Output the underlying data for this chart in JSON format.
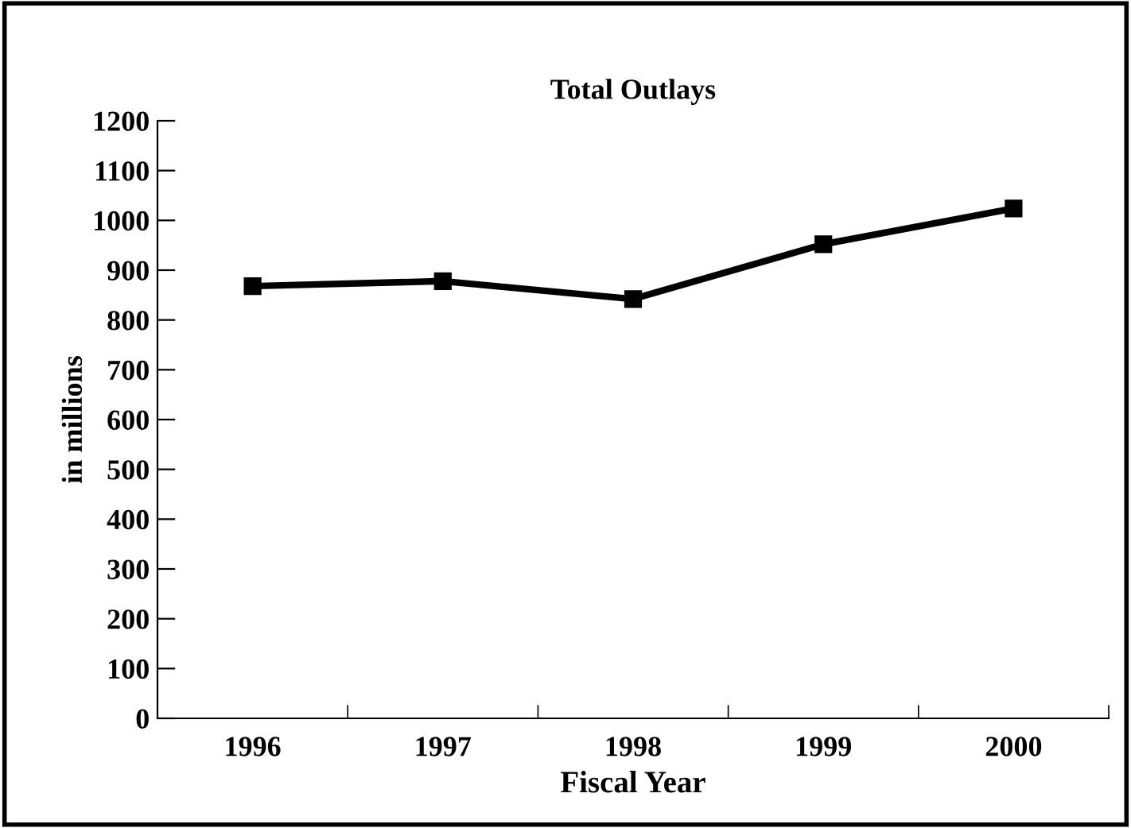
{
  "chart_data": {
    "type": "line",
    "title": "Total Outlays",
    "xlabel": "Fiscal Year",
    "ylabel": "in millions",
    "categories": [
      "1996",
      "1997",
      "1998",
      "1999",
      "2000"
    ],
    "series": [
      {
        "color": "#000000",
        "values": [
          868,
          878,
          842,
          952,
          1024
        ]
      }
    ],
    "ylim": [
      0,
      1200
    ],
    "yticks": [
      0,
      100,
      200,
      300,
      400,
      500,
      600,
      700,
      800,
      900,
      1000,
      1100,
      1200
    ],
    "grid": false,
    "legend": false,
    "marker": "square",
    "line_style": "solid"
  }
}
